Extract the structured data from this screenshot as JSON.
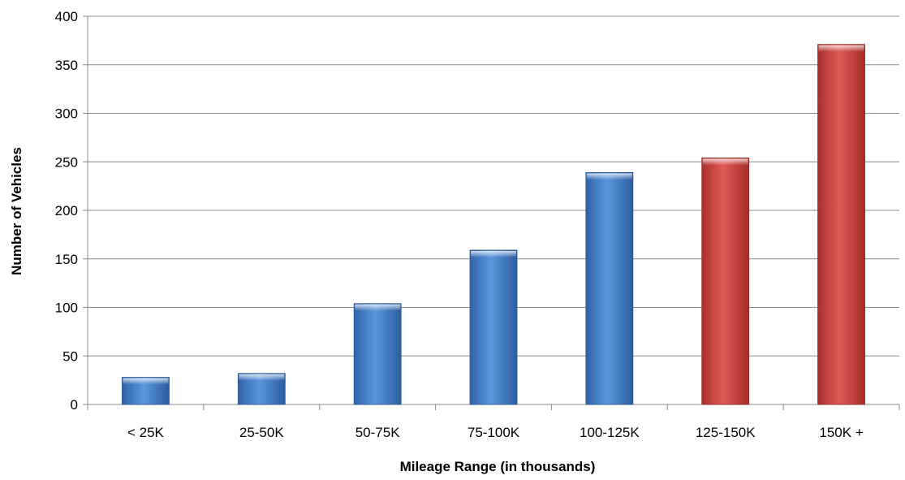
{
  "chart_data": {
    "type": "bar",
    "title": "",
    "xlabel": "Mileage Range (in thousands)",
    "ylabel": "Number of Vehicles",
    "ylim": [
      0,
      400
    ],
    "yticks": [
      0,
      50,
      100,
      150,
      200,
      250,
      300,
      350,
      400
    ],
    "grid": true,
    "legend": "none",
    "categories": [
      "< 25K",
      "25-50K",
      "50-75K",
      "75-100K",
      "100-125K",
      "125-150K",
      "150K +"
    ],
    "values": [
      28,
      32,
      104,
      159,
      239,
      254,
      371
    ],
    "bar_colors": [
      "#3a78c4",
      "#3a78c4",
      "#3a78c4",
      "#3a78c4",
      "#3a78c4",
      "#c9403c",
      "#c9403c"
    ]
  }
}
